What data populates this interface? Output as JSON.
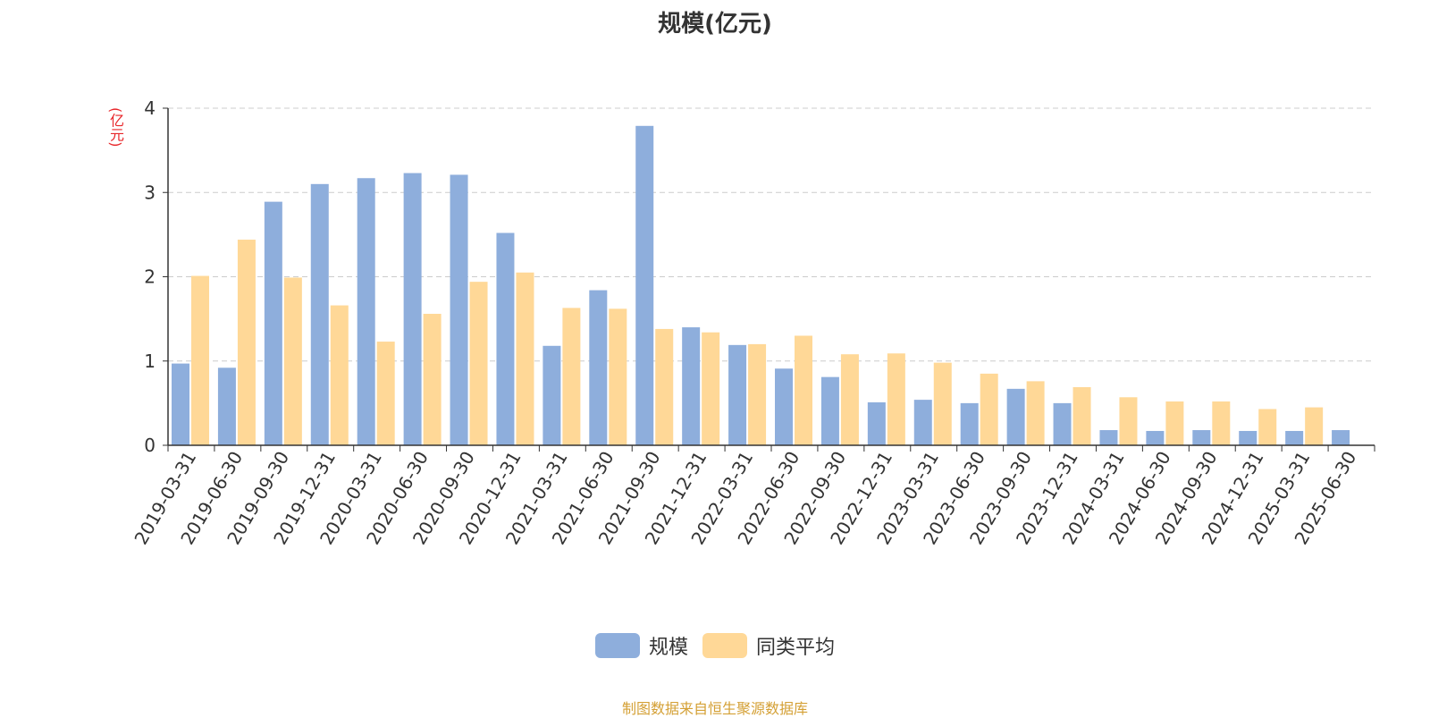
{
  "chart_data": {
    "type": "bar",
    "title": "规模(亿元)",
    "ylabel": "(亿元)",
    "ylim": [
      0,
      4
    ],
    "yticks": [
      "0",
      "1",
      "2",
      "3",
      "4"
    ],
    "grid": true,
    "legend_position": "bottom",
    "categories": [
      "2019-03-31",
      "2019-06-30",
      "2019-09-30",
      "2019-12-31",
      "2020-03-31",
      "2020-06-30",
      "2020-09-30",
      "2020-12-31",
      "2021-03-31",
      "2021-06-30",
      "2021-09-30",
      "2021-12-31",
      "2022-03-31",
      "2022-06-30",
      "2022-09-30",
      "2022-12-31",
      "2023-03-31",
      "2023-06-30",
      "2023-09-30",
      "2023-12-31",
      "2024-03-31",
      "2024-06-30",
      "2024-09-30",
      "2024-12-31",
      "2025-03-31",
      "2025-06-30"
    ],
    "series": [
      {
        "name": "规模",
        "color": "#8eaedc",
        "values": [
          0.97,
          0.92,
          2.89,
          3.1,
          3.17,
          3.23,
          3.21,
          2.52,
          1.18,
          1.84,
          3.79,
          1.4,
          1.19,
          0.91,
          0.81,
          0.51,
          0.54,
          0.5,
          0.67,
          0.5,
          0.18,
          0.17,
          0.18,
          0.17,
          0.17,
          0.18
        ]
      },
      {
        "name": "同类平均",
        "color": "#ffd897",
        "values": [
          2.01,
          2.44,
          1.99,
          1.66,
          1.23,
          1.56,
          1.94,
          2.05,
          1.63,
          1.62,
          1.38,
          1.34,
          1.2,
          1.3,
          1.08,
          1.09,
          0.98,
          0.85,
          0.76,
          0.69,
          0.57,
          0.52,
          0.52,
          0.43,
          0.45,
          null
        ]
      }
    ]
  },
  "source_note": "制图数据来自恒生聚源数据库"
}
